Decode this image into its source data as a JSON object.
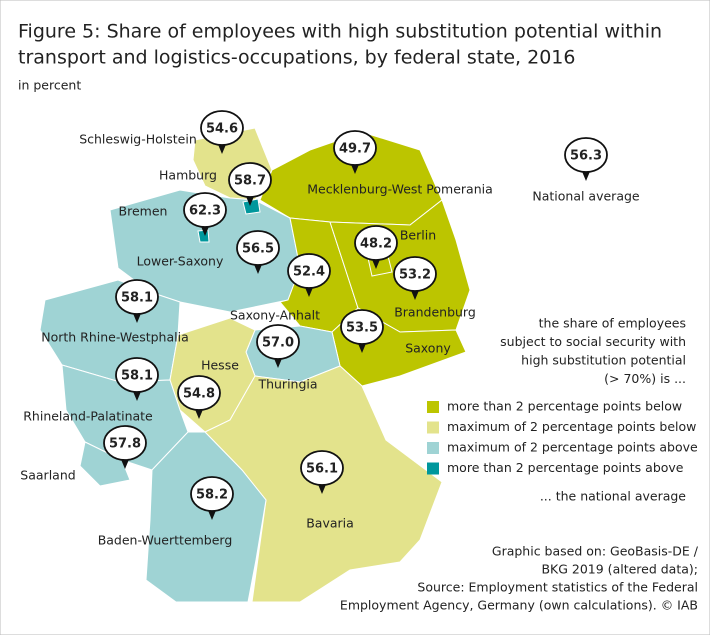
{
  "title": [
    "Figure 5: Share of employees with high substitution potential within",
    "transport and logistics-occupations, by federal state, 2016"
  ],
  "subtitle": "in percent",
  "states": [
    {
      "name": "Schleswig-Holstein",
      "value": 54.6,
      "color": "#e3e38c"
    },
    {
      "name": "Hamburg",
      "value": 58.7,
      "color": "#00979c"
    },
    {
      "name": "Bremen",
      "value": 62.3,
      "color": "#00979c"
    },
    {
      "name": "Mecklenburg-West Pomerania",
      "value": 49.7,
      "color": "#bcc500"
    },
    {
      "name": "Lower-Saxony",
      "value": 56.5,
      "color": "#9fd3d4"
    },
    {
      "name": "Berlin",
      "value": 48.2,
      "color": "#bcc500"
    },
    {
      "name": "Saxony-Anhalt",
      "value": 52.4,
      "color": "#bcc500"
    },
    {
      "name": "Brandenburg",
      "value": 53.2,
      "color": "#bcc500"
    },
    {
      "name": "North Rhine-Westphalia",
      "value": 58.1,
      "color": "#9fd3d4"
    },
    {
      "name": "Saxony",
      "value": 53.5,
      "color": "#bcc500"
    },
    {
      "name": "Thuringia",
      "value": 57.0,
      "value_label": "57.0",
      "color": "#9fd3d4"
    },
    {
      "name": "Hesse",
      "value": 54.8,
      "color": "#e3e38c"
    },
    {
      "name": "Rhineland-Palatinate",
      "value": 58.1,
      "color": "#9fd3d4"
    },
    {
      "name": "Saarland",
      "value": 57.8,
      "color": "#9fd3d4"
    },
    {
      "name": "Baden-Wuerttemberg",
      "value": 58.2,
      "color": "#9fd3d4"
    },
    {
      "name": "Bavaria",
      "value": 56.1,
      "color": "#e3e38c"
    }
  ],
  "national_average": {
    "value": 56.3,
    "label": "National average"
  },
  "legend": {
    "intro": [
      "the share of employees",
      "subject to social security with",
      "high substitution potential",
      "(> 70%) is ..."
    ],
    "items": [
      {
        "label": "more than 2 percentage points below",
        "color": "#bcc500"
      },
      {
        "label": "maximum of 2 percentage points below",
        "color": "#e3e38c"
      },
      {
        "label": "maximum of  2 percentage points above",
        "color": "#9fd3d4"
      },
      {
        "label": "more than 2 percentage points above",
        "color": "#00979c"
      }
    ],
    "outro": "... the national average"
  },
  "source": [
    "Graphic based on: GeoBasis-DE /",
    "BKG 2019 (altered data);",
    "Source: Employment statistics of the Federal",
    "Employment Agency, Germany (own calculations). © IAB"
  ]
}
